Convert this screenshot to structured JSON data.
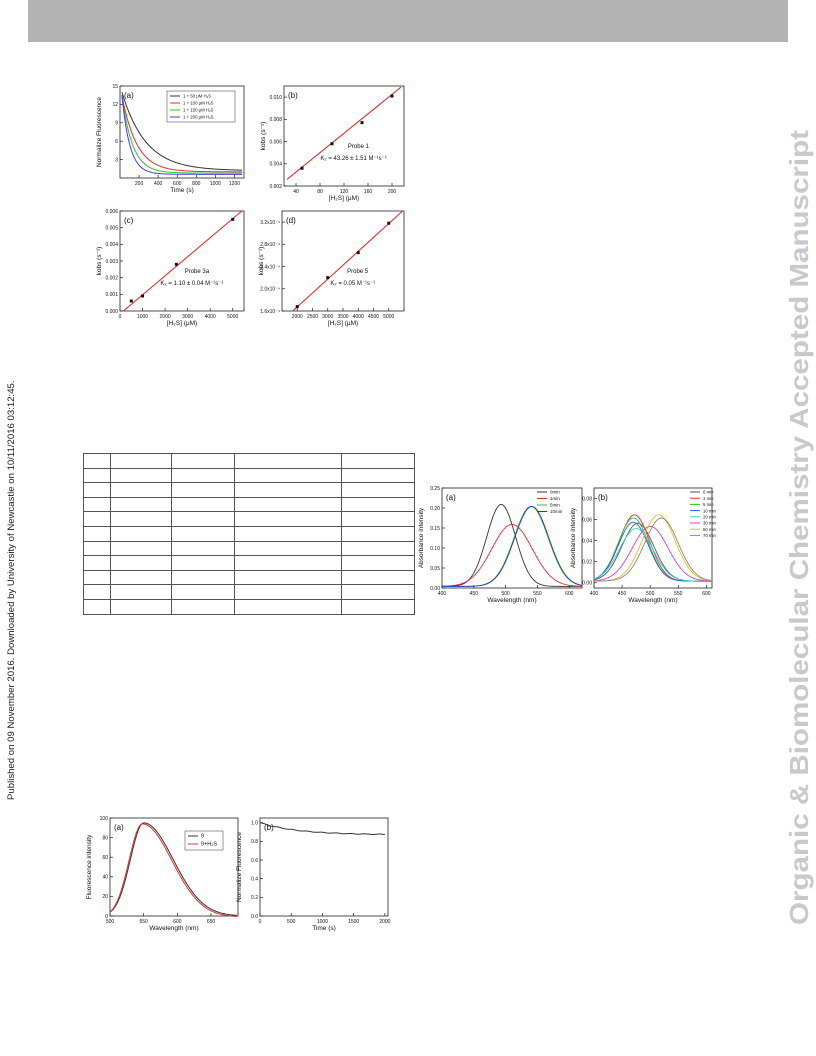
{
  "header": {
    "accent": "#b3b3b3"
  },
  "side_left": "Published on 09 November 2016. Downloaded by University of Newcastle on 10/11/2016 03:12:45.",
  "side_right": "Organic & Biomolecular Chemistry Accepted Manuscript",
  "figure1": {
    "panels": [
      {
        "id": "a",
        "label": "(a)",
        "type": "line",
        "xlabel": "Time (s)",
        "ylabel": "Normalize Fluorescence",
        "xlim": [
          0,
          1300
        ],
        "ylim": [
          0,
          15
        ],
        "xticks": [
          200,
          400,
          600,
          800,
          1000,
          1200
        ],
        "yticks": [
          3,
          6,
          9,
          12,
          15
        ],
        "legend": [
          "1 + 50 μM H₂S",
          "1 + 100 μM H₂S",
          "1 + 150 μM H₂S",
          "1 + 200 μM H₂S"
        ],
        "series": [
          {
            "name": "1 + 50 μM H₂S",
            "color": "#333333",
            "y0": 14,
            "k": 0.004,
            "yinf": 1.2
          },
          {
            "name": "1 + 100 μM H₂S",
            "color": "#e03030",
            "y0": 13.5,
            "k": 0.0065,
            "yinf": 1.0
          },
          {
            "name": "1 + 150 μM H₂S",
            "color": "#30c030",
            "y0": 13.5,
            "k": 0.009,
            "yinf": 0.8
          },
          {
            "name": "1 + 200 μM H₂S",
            "color": "#4040e0",
            "y0": 13.5,
            "k": 0.012,
            "yinf": 0.6
          }
        ]
      },
      {
        "id": "b",
        "label": "(b)",
        "type": "scatter",
        "xlabel": "[H₂S] (μM)",
        "ylabel": "kobs (s⁻¹)",
        "xlim": [
          20,
          220
        ],
        "ylim": [
          0.002,
          0.011
        ],
        "xticks": [
          "40",
          "80",
          "120",
          "160",
          "200"
        ],
        "yticks": [
          "0.002",
          "0.004",
          "0.006",
          "0.008",
          "0.010"
        ],
        "xtick_values": [
          40,
          80,
          120,
          160,
          200
        ],
        "ytick_values": [
          0.002,
          0.004,
          0.006,
          0.008,
          0.01
        ],
        "points": [
          [
            50,
            0.0036
          ],
          [
            100,
            0.0058
          ],
          [
            150,
            0.0077
          ],
          [
            200,
            0.0101
          ]
        ],
        "fit": [
          [
            25,
            0.0026
          ],
          [
            215,
            0.0109
          ]
        ],
        "probe": "Probe 1",
        "k2": "K₂ = 43.26 ± 1.51 M⁻¹s⁻¹"
      },
      {
        "id": "c",
        "label": "(c)",
        "type": "scatter",
        "xlabel": "[H₂S] (μM)",
        "ylabel": "kobs (s⁻¹)",
        "xlim": [
          0,
          5500
        ],
        "ylim": [
          0,
          0.006
        ],
        "xticks": [
          "0",
          "1000",
          "2000",
          "3000",
          "4000",
          "5000"
        ],
        "yticks": [
          "0.000",
          "0.001",
          "0.002",
          "0.003",
          "0.004",
          "0.005",
          "0.006"
        ],
        "xtick_values": [
          0,
          1000,
          2000,
          3000,
          4000,
          5000
        ],
        "ytick_values": [
          0,
          0.001,
          0.002,
          0.003,
          0.004,
          0.005,
          0.006
        ],
        "points": [
          [
            500,
            0.0006
          ],
          [
            1000,
            0.0009
          ],
          [
            2500,
            0.0028
          ],
          [
            5000,
            0.0055
          ]
        ],
        "fit": [
          [
            150,
            0.0
          ],
          [
            5400,
            0.006
          ]
        ],
        "probe": "Probe 3a",
        "k2": "K₂ = 1.10 ± 0.04 M⁻¹s⁻¹"
      },
      {
        "id": "d",
        "label": "(d)",
        "type": "scatter",
        "xlabel": "[H₂S] (μM)",
        "ylabel": "kobs (s⁻¹)",
        "xlim": [
          1500,
          5500
        ],
        "ylim": [
          0.00016,
          0.00034
        ],
        "xticks": [
          "2000",
          "2500",
          "3000",
          "3500",
          "4000",
          "4500",
          "5000"
        ],
        "yticks": [
          "1.6x10⁻⁴",
          "2.0x10⁻⁴",
          "2.4x10⁻⁴",
          "2.8x10⁻⁴",
          "3.2x10⁻⁴"
        ],
        "xtick_values": [
          2000,
          2500,
          3000,
          3500,
          4000,
          4500,
          5000
        ],
        "ytick_values": [
          0.00016,
          0.0002,
          0.00024,
          0.00028,
          0.00032
        ],
        "points": [
          [
            2000,
            0.000168
          ],
          [
            3000,
            0.00022
          ],
          [
            4000,
            0.000265
          ],
          [
            5000,
            0.000318
          ]
        ],
        "fit": [
          [
            1850,
            0.00016
          ],
          [
            5450,
            0.00034
          ]
        ],
        "probe": "Probe 5",
        "k2": "K₂ = 0.05 M⁻¹s⁻¹"
      }
    ]
  },
  "table": {
    "rows": 11,
    "cols": 5
  },
  "figure2": {
    "panels": [
      {
        "id": "a",
        "label": "(a)",
        "xlabel": "Wavelength (nm)",
        "ylabel": "Absorbance intensity",
        "xlim": [
          400,
          620
        ],
        "ylim": [
          0,
          0.25
        ],
        "xticks": [
          "400",
          "450",
          "500",
          "550",
          "600"
        ],
        "yticks": [
          "0.00",
          "0.05",
          "0.10",
          "0.15",
          "0.20",
          "0.25"
        ],
        "xtick_values": [
          400,
          450,
          500,
          550,
          600
        ],
        "ytick_values": [
          0,
          0.05,
          0.1,
          0.15,
          0.2,
          0.25
        ],
        "legend": [
          "0min",
          "1min",
          "5min",
          "10min"
        ],
        "series": [
          {
            "name": "0min",
            "color": "#333333",
            "peaks": [
              [
                493,
                0.205,
                32
              ]
            ]
          },
          {
            "name": "1min",
            "color": "#e03030",
            "peaks": [
              [
                510,
                0.155,
                45
              ]
            ]
          },
          {
            "name": "5min",
            "color": "#30c030",
            "peaks": [
              [
                540,
                0.2,
                38
              ]
            ]
          },
          {
            "name": "10min",
            "color": "#3030d0",
            "peaks": [
              [
                541,
                0.2,
                38
              ]
            ]
          }
        ]
      },
      {
        "id": "b",
        "label": "(b)",
        "xlabel": "Wavelength (nm)",
        "ylabel": "Absorbance intensity",
        "xlim": [
          400,
          610
        ],
        "ylim": [
          -0.005,
          0.09
        ],
        "xticks": [
          "400",
          "450",
          "500",
          "550",
          "600"
        ],
        "yticks": [
          "0.00",
          "0.02",
          "0.04",
          "0.06",
          "0.08"
        ],
        "xtick_values": [
          400,
          450,
          500,
          550,
          600
        ],
        "ytick_values": [
          0,
          0.02,
          0.04,
          0.06,
          0.08
        ],
        "legend": [
          "0 min",
          "1 min",
          "5 min",
          "10 min",
          "20 min",
          "30 min",
          "50 min",
          "70 min"
        ],
        "series": [
          {
            "name": "0 min",
            "color": "#555555",
            "peaks": [
              [
                478,
                0.055,
                40
              ]
            ]
          },
          {
            "name": "1 min",
            "color": "#e03030",
            "peaks": [
              [
                472,
                0.063,
                38
              ]
            ]
          },
          {
            "name": "5 min",
            "color": "#30c030",
            "peaks": [
              [
                470,
                0.06,
                38
              ]
            ]
          },
          {
            "name": "10 min",
            "color": "#3060e0",
            "peaks": [
              [
                470,
                0.056,
                38
              ]
            ]
          },
          {
            "name": "20 min",
            "color": "#30d0d0",
            "peaks": [
              [
                475,
                0.05,
                42
              ]
            ]
          },
          {
            "name": "30 min",
            "color": "#d040d0",
            "peaks": [
              [
                500,
                0.052,
                45
              ]
            ]
          },
          {
            "name": "50 min",
            "color": "#e0c020",
            "peaks": [
              [
                515,
                0.063,
                42
              ]
            ]
          },
          {
            "name": "70 min",
            "color": "#888888",
            "peaks": [
              [
                520,
                0.06,
                42
              ]
            ]
          }
        ]
      }
    ]
  },
  "figure3": {
    "panels": [
      {
        "id": "a",
        "label": "(a)",
        "xlabel": "Wavelength (nm)",
        "ylabel": "Fluorescence intensity",
        "xlim": [
          500,
          690
        ],
        "ylim": [
          0,
          100
        ],
        "xticks": [
          "500",
          "550",
          "600",
          "650"
        ],
        "yticks": [
          "0",
          "20",
          "40",
          "60",
          "80",
          "100"
        ],
        "xtick_values": [
          500,
          550,
          600,
          650
        ],
        "ytick_values": [
          0,
          20,
          40,
          60,
          80,
          100
        ],
        "legend": [
          "9",
          "9+H₂S"
        ],
        "series": [
          {
            "name": "9",
            "color": "#333333",
            "shift": 0
          },
          {
            "name": "9+H₂S",
            "color": "#e03030",
            "shift": -2
          }
        ]
      },
      {
        "id": "b",
        "label": "(b)",
        "xlabel": "Time (s)",
        "ylabel": "Normalize Fluorescence",
        "xlim": [
          0,
          2050
        ],
        "ylim": [
          0,
          1.05
        ],
        "xticks": [
          "0",
          "500",
          "1000",
          "1500",
          "2000"
        ],
        "yticks": [
          "0.0",
          "0.2",
          "0.4",
          "0.6",
          "0.8",
          "1.0"
        ],
        "xtick_values": [
          0,
          500,
          1000,
          1500,
          2000
        ],
        "ytick_values": [
          0,
          0.2,
          0.4,
          0.6,
          0.8,
          1.0
        ]
      }
    ]
  }
}
